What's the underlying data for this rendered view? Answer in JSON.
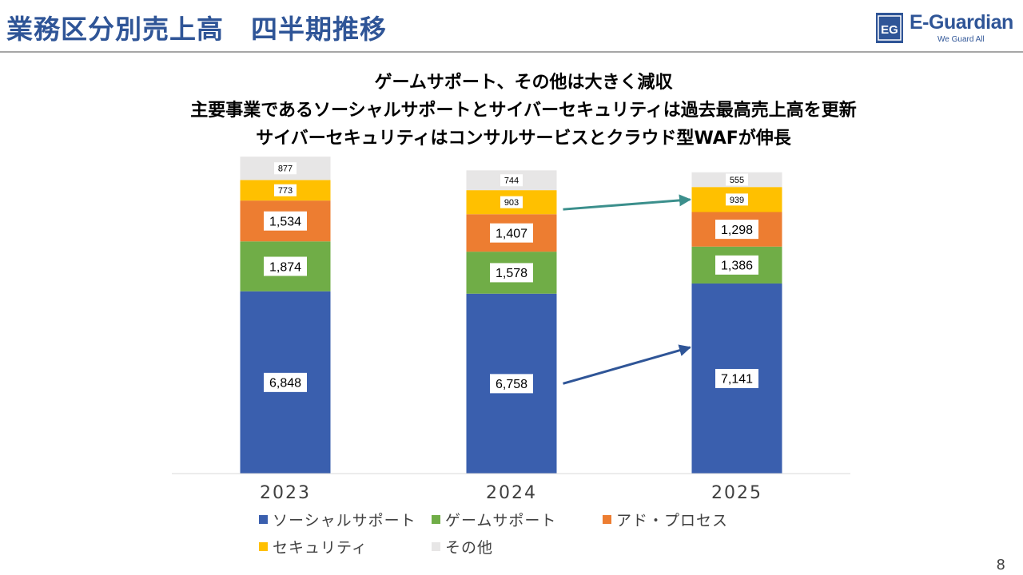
{
  "header": {
    "title": "業務区分別売上高　四半期推移",
    "logo": {
      "name": "E-Guardian",
      "tagline": "We Guard All",
      "mark_text": "EG"
    }
  },
  "headlines": [
    "ゲームサポート、その他は大きく減収",
    "主要事業であるソーシャルサポートとサイバーセキュリティは過去最高売上高を更新",
    "サイバーセキュリティはコンサルサービスとクラウド型WAFが伸長"
  ],
  "chart_data": {
    "type": "bar",
    "stacked": true,
    "categories": [
      "2023",
      "2024",
      "2025"
    ],
    "series": [
      {
        "name": "ソーシャルサポート",
        "values": [
          6848,
          6758,
          7141
        ],
        "labels": [
          "6,848",
          "6,758",
          "7,141"
        ],
        "color": "#3a5fae"
      },
      {
        "name": "ゲームサポート",
        "values": [
          1874,
          1578,
          1386
        ],
        "labels": [
          "1,874",
          "1,578",
          "1,386"
        ],
        "color": "#70ad47"
      },
      {
        "name": "アド・プロセス",
        "values": [
          1534,
          1407,
          1298
        ],
        "labels": [
          "1,534",
          "1,407",
          "1,298"
        ],
        "color": "#ed7d31"
      },
      {
        "name": "セキュリティ",
        "values": [
          773,
          903,
          939
        ],
        "labels": [
          "773",
          "903",
          "939"
        ],
        "color": "#ffc000"
      },
      {
        "name": "その他",
        "values": [
          877,
          744,
          555
        ],
        "labels": [
          "877",
          "744",
          "555"
        ],
        "color": "#e7e6e6"
      }
    ],
    "arrows": [
      {
        "series": "ソーシャルサポート",
        "from": "2024",
        "to": "2025",
        "color": "#2f5597"
      },
      {
        "series": "セキュリティ",
        "from": "2024",
        "to": "2025",
        "color": "#3b8f8c"
      }
    ],
    "ylim": [
      0,
      12000
    ],
    "legend_position": "bottom"
  },
  "page_number": "8"
}
